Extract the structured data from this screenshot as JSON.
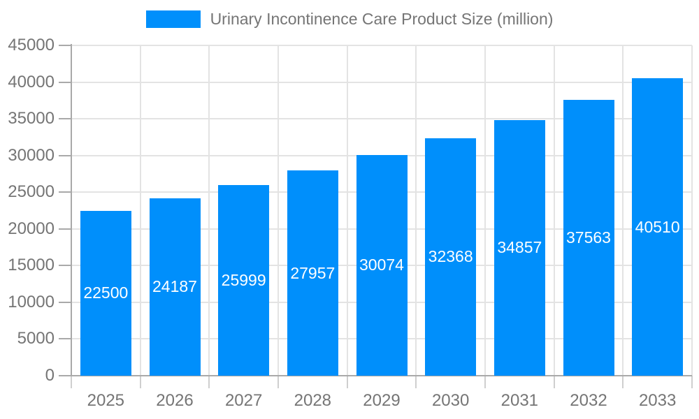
{
  "legend": {
    "label": "Urinary Incontinence Care Product Size (million)"
  },
  "colors": {
    "bar": "#008FFB",
    "grid": "#e3e3e3",
    "axis": "#a9a9a9",
    "axis_text": "#757575",
    "bar_label_text": "#ffffff",
    "background": "#ffffff"
  },
  "chart_data": {
    "type": "bar",
    "title": "Urinary Incontinence Care Product Size (million)",
    "categories": [
      "2025",
      "2026",
      "2027",
      "2028",
      "2029",
      "2030",
      "2031",
      "2032",
      "2033"
    ],
    "values": [
      22500,
      24187,
      25999,
      27957,
      30074,
      32368,
      34857,
      37563,
      40510
    ],
    "xlabel": "",
    "ylabel": "",
    "ylim": [
      0,
      45000
    ],
    "ytick_step": 5000,
    "ytick_labels": [
      "0",
      "5000",
      "10000",
      "15000",
      "20000",
      "25000",
      "30000",
      "35000",
      "40000",
      "45000"
    ],
    "grid": "on",
    "legend_position": "top",
    "data_labels": "inside-center"
  }
}
